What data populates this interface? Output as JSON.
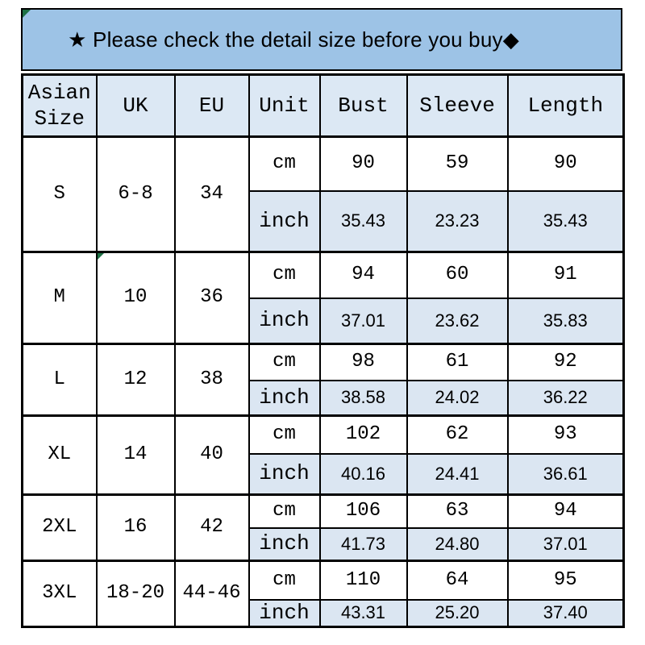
{
  "banner": {
    "text": "★ Please check the detail size before you buy◆"
  },
  "table": {
    "headers": [
      "Asian Size",
      "UK",
      "EU",
      "Unit",
      "Bust",
      "Sleeve",
      "Length"
    ],
    "unit_labels": {
      "cm": "cm",
      "inch": "inch"
    },
    "rows": [
      {
        "size": "S",
        "uk": "6-8",
        "eu": "34",
        "cm": [
          "90",
          "59",
          "90"
        ],
        "inch": [
          "35.43",
          "23.23",
          "35.43"
        ]
      },
      {
        "size": "M",
        "uk": "10",
        "eu": "36",
        "cm": [
          "94",
          "60",
          "91"
        ],
        "inch": [
          "37.01",
          "23.62",
          "35.83"
        ]
      },
      {
        "size": "L",
        "uk": "12",
        "eu": "38",
        "cm": [
          "98",
          "61",
          "92"
        ],
        "inch": [
          "38.58",
          "24.02",
          "36.22"
        ]
      },
      {
        "size": "XL",
        "uk": "14",
        "eu": "40",
        "cm": [
          "102",
          "62",
          "93"
        ],
        "inch": [
          "40.16",
          "24.41",
          "36.61"
        ]
      },
      {
        "size": "2XL",
        "uk": "16",
        "eu": "42",
        "cm": [
          "106",
          "63",
          "94"
        ],
        "inch": [
          "41.73",
          "24.80",
          "37.01"
        ]
      },
      {
        "size": "3XL",
        "uk": "18-20",
        "eu": "44-46",
        "cm": [
          "110",
          "64",
          "95"
        ],
        "inch": [
          "43.31",
          "25.20",
          "37.40"
        ]
      }
    ]
  },
  "colors": {
    "banner_bg": "#9dc3e6",
    "header_row_bg": "#dce8f4",
    "inch_row_bg": "#dbe6f2",
    "border": "#000000",
    "corner_marker_green": "#1d7044"
  },
  "icons": {
    "banner_star": "★",
    "banner_diamond": "◆",
    "corner_marker": "triangle-top-left"
  }
}
